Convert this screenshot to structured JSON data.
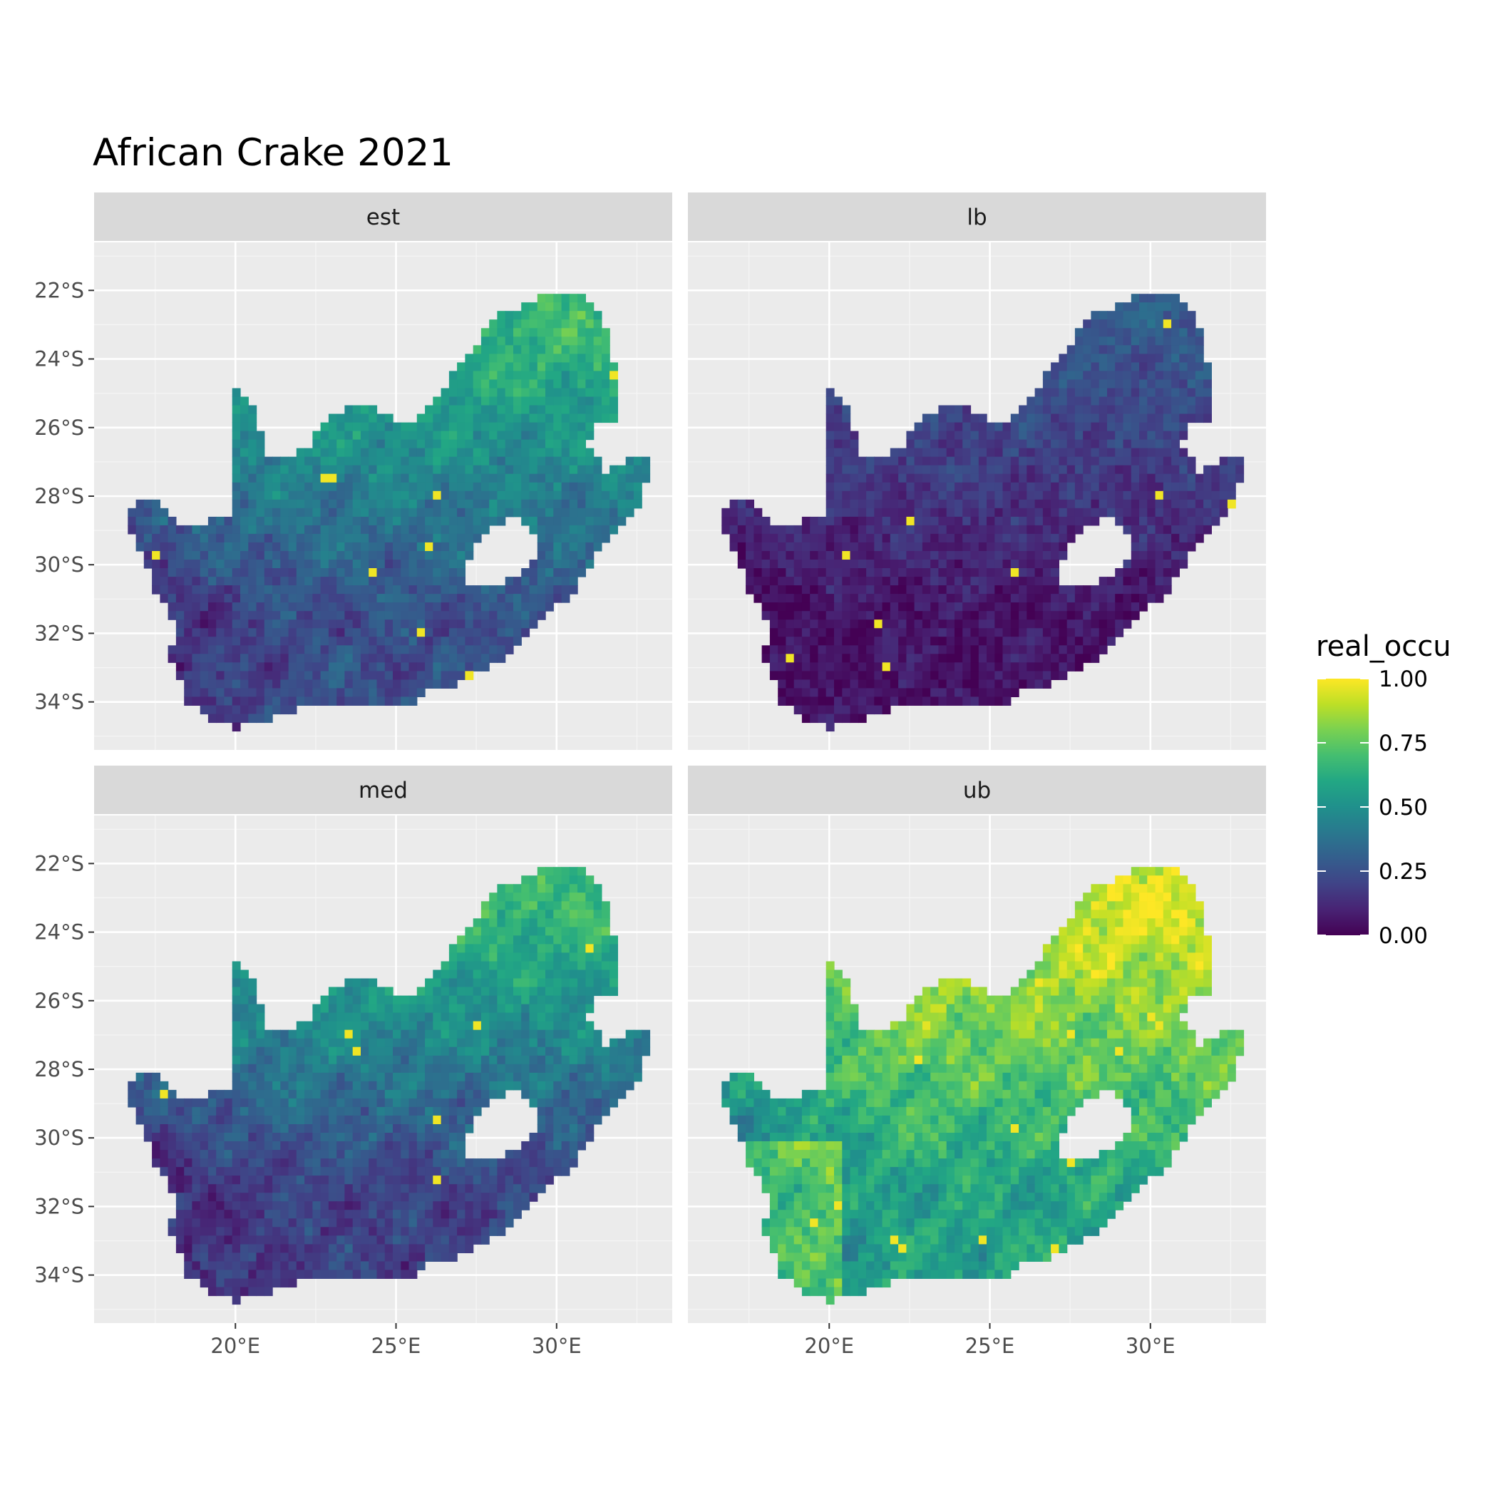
{
  "chart_data": {
    "type": "heatmap",
    "title": "African Crake 2021",
    "facets": [
      "est",
      "lb",
      "med",
      "ub"
    ],
    "x_ticks": [
      {
        "value": 20,
        "label": "20°E"
      },
      {
        "value": 25,
        "label": "25°E"
      },
      {
        "value": 30,
        "label": "30°E"
      }
    ],
    "y_ticks": [
      {
        "value": -22,
        "label": "22°S"
      },
      {
        "value": -24,
        "label": "24°S"
      },
      {
        "value": -26,
        "label": "26°S"
      },
      {
        "value": -28,
        "label": "28°S"
      },
      {
        "value": -30,
        "label": "30°S"
      },
      {
        "value": -32,
        "label": "32°S"
      },
      {
        "value": -34,
        "label": "34°S"
      }
    ],
    "xlim": [
      15.6,
      33.6
    ],
    "ylim": [
      -35.4,
      -20.6
    ],
    "grid": true,
    "legend": {
      "title": "real_occu",
      "position": "right",
      "range": [
        0,
        1
      ],
      "ticks": [
        {
          "value": 1.0,
          "label": "1.00"
        },
        {
          "value": 0.75,
          "label": "0.75"
        },
        {
          "value": 0.5,
          "label": "0.50"
        },
        {
          "value": 0.25,
          "label": "0.25"
        },
        {
          "value": 0.0,
          "label": "0.00"
        }
      ],
      "palette": [
        "#440154",
        "#3b528b",
        "#21908c",
        "#5dc863",
        "#fde725"
      ]
    },
    "region_outline_lonlat": [
      [
        16.5,
        -28.6
      ],
      [
        17.1,
        -28.0
      ],
      [
        17.5,
        -28.1
      ],
      [
        18.0,
        -28.7
      ],
      [
        19.0,
        -28.8
      ],
      [
        20.0,
        -28.5
      ],
      [
        20.0,
        -24.8
      ],
      [
        20.6,
        -25.3
      ],
      [
        20.9,
        -26.8
      ],
      [
        22.2,
        -26.7
      ],
      [
        22.8,
        -25.8
      ],
      [
        23.6,
        -25.3
      ],
      [
        24.3,
        -25.4
      ],
      [
        25.0,
        -25.8
      ],
      [
        25.7,
        -25.8
      ],
      [
        26.4,
        -24.9
      ],
      [
        27.0,
        -24.2
      ],
      [
        28.1,
        -22.8
      ],
      [
        29.5,
        -22.2
      ],
      [
        30.8,
        -22.2
      ],
      [
        31.4,
        -22.6
      ],
      [
        31.9,
        -24.5
      ],
      [
        32.0,
        -26.0
      ],
      [
        31.3,
        -25.9
      ],
      [
        31.0,
        -26.5
      ],
      [
        31.5,
        -27.3
      ],
      [
        32.0,
        -27.0
      ],
      [
        32.9,
        -26.9
      ],
      [
        32.6,
        -28.3
      ],
      [
        32.0,
        -28.9
      ],
      [
        31.2,
        -29.8
      ],
      [
        30.4,
        -30.9
      ],
      [
        29.5,
        -31.6
      ],
      [
        28.3,
        -32.8
      ],
      [
        27.2,
        -33.4
      ],
      [
        26.0,
        -33.7
      ],
      [
        25.5,
        -34.0
      ],
      [
        24.5,
        -34.2
      ],
      [
        23.5,
        -34.0
      ],
      [
        22.5,
        -34.1
      ],
      [
        21.3,
        -34.4
      ],
      [
        20.0,
        -34.8
      ],
      [
        19.2,
        -34.5
      ],
      [
        18.8,
        -34.2
      ],
      [
        18.4,
        -34.1
      ],
      [
        18.3,
        -33.3
      ],
      [
        17.9,
        -32.6
      ],
      [
        18.2,
        -31.9
      ],
      [
        17.6,
        -30.9
      ],
      [
        17.2,
        -30.0
      ],
      [
        16.5,
        -28.6
      ]
    ],
    "lesotho_hole_lonlat": [
      [
        27.0,
        -30.6
      ],
      [
        27.4,
        -29.6
      ],
      [
        28.0,
        -28.9
      ],
      [
        28.7,
        -28.6
      ],
      [
        29.3,
        -29.0
      ],
      [
        29.4,
        -29.6
      ],
      [
        28.9,
        -30.3
      ],
      [
        28.2,
        -30.5
      ],
      [
        27.6,
        -30.6
      ],
      [
        27.0,
        -30.6
      ]
    ],
    "panel_levels": {
      "est": {
        "base": 0.24,
        "north_boost": 0.42,
        "south_drop": 0.12,
        "spread": 0.22
      },
      "lb": {
        "base": 0.06,
        "north_boost": 0.22,
        "south_drop": 0.03,
        "spread": 0.12
      },
      "med": {
        "base": 0.2,
        "north_boost": 0.47,
        "south_drop": 0.1,
        "spread": 0.22
      },
      "ub": {
        "base": 0.58,
        "north_boost": 0.36,
        "south_drop": 0.2,
        "spread": 0.26
      }
    }
  }
}
